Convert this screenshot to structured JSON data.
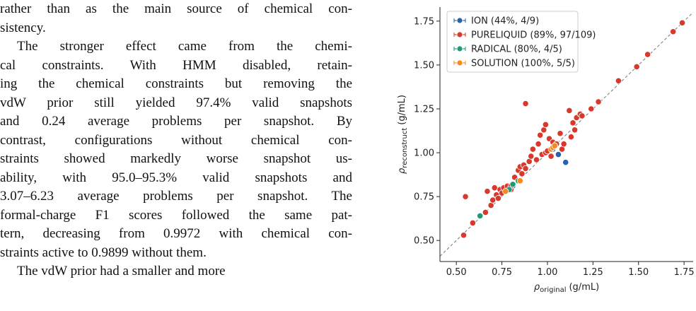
{
  "body": {
    "paragraphs": [
      {
        "indent": false,
        "lines": [
          "rather than as the main source of chemical con-",
          "sistency."
        ]
      },
      {
        "indent": true,
        "lines": [
          "The stronger effect came from the chemi-",
          "cal constraints. With HMM disabled, retain-",
          "ing the chemical constraints but removing the",
          "vdW prior still yielded 97.4% valid snapshots",
          "and 0.24 average problems per snapshot. By",
          "contrast, configurations without chemical con-",
          "straints showed markedly worse snapshot us-",
          "ability, with 95.0–95.3% valid snapshots and",
          "3.07–6.23 average problems per snapshot. The",
          "formal-charge F1 scores followed the same pat-",
          "tern, decreasing from 0.9972 with chemical con-",
          "straints active to 0.9899 without them."
        ]
      },
      {
        "indent": true,
        "lines": [
          "The vdW prior had a smaller and more"
        ]
      }
    ]
  },
  "chart_data": {
    "type": "scatter",
    "xlabel": {
      "symbol": "ρ",
      "sub": "original",
      "unit": "(g/mL)"
    },
    "ylabel": {
      "symbol": "ρ",
      "sub": "reconstruct",
      "unit": "(g/mL)"
    },
    "xlim": [
      0.41,
      1.8
    ],
    "ylim": [
      0.38,
      1.83
    ],
    "xticks": [
      {
        "value": 0.5,
        "label": "0.50"
      },
      0.75,
      {
        "value": 1.0,
        "label": "1.00"
      },
      1.25,
      {
        "value": 1.5,
        "label": "1.50"
      },
      1.75
    ],
    "yticks": [
      {
        "value": 0.5,
        "label": "0.50"
      },
      0.75,
      {
        "value": 1.0,
        "label": "1.00"
      },
      1.25,
      {
        "value": 1.5,
        "label": "1.50"
      },
      1.75
    ],
    "legend": "upper left",
    "series": [
      {
        "name": "ION (44%, 4/9)",
        "color": "#2a62a8",
        "x": [
          1.06,
          1.1,
          1.03,
          0.81
        ],
        "values": [
          0.99,
          0.945,
          1.02,
          0.81
        ]
      },
      {
        "name": "PURELIQUID (89%, 97/109)",
        "color": "#d8392c",
        "x": [
          0.54,
          0.55,
          0.59,
          0.66,
          0.67,
          0.69,
          0.7,
          0.71,
          0.72,
          0.73,
          0.74,
          0.75,
          0.76,
          0.78,
          0.8,
          0.82,
          0.84,
          0.85,
          0.86,
          0.87,
          0.88,
          0.88,
          0.9,
          0.91,
          0.92,
          0.94,
          0.95,
          0.96,
          0.97,
          0.98,
          0.99,
          1.0,
          1.01,
          1.02,
          1.03,
          1.05,
          1.07,
          1.08,
          1.09,
          1.12,
          1.13,
          1.14,
          1.15,
          1.16,
          1.18,
          1.19,
          1.24,
          1.28,
          1.39,
          1.49,
          1.55,
          1.69,
          1.74,
          0.8,
          0.99,
          1.04
        ],
        "values": [
          0.53,
          0.75,
          0.6,
          0.66,
          0.78,
          0.7,
          0.73,
          0.8,
          0.76,
          0.74,
          0.79,
          0.77,
          0.8,
          0.81,
          0.79,
          0.86,
          0.9,
          0.92,
          0.88,
          0.93,
          0.91,
          1.28,
          0.95,
          0.98,
          1.02,
          0.96,
          1.05,
          1.1,
          0.99,
          1.13,
          1.0,
          1.01,
          1.08,
          0.98,
          1.06,
          1.05,
          1.11,
          1.02,
          1.05,
          1.24,
          1.09,
          1.17,
          1.13,
          1.2,
          1.22,
          1.21,
          1.25,
          1.29,
          1.41,
          1.49,
          1.56,
          1.69,
          1.74,
          0.81,
          1.16,
          1.04
        ]
      },
      {
        "name": "RADICAL (80%, 4/5)",
        "color": "#1e9a7b",
        "x": [
          0.63,
          0.79,
          0.81,
          0.84
        ],
        "values": [
          0.64,
          0.79,
          0.82,
          0.84
        ]
      },
      {
        "name": "SOLUTION (100%, 5/5)",
        "color": "#f58b1f",
        "x": [
          1.02,
          0.85,
          1.03,
          0.77,
          1.04
        ],
        "values": [
          1.02,
          0.84,
          1.03,
          0.78,
          1.04
        ]
      }
    ]
  }
}
